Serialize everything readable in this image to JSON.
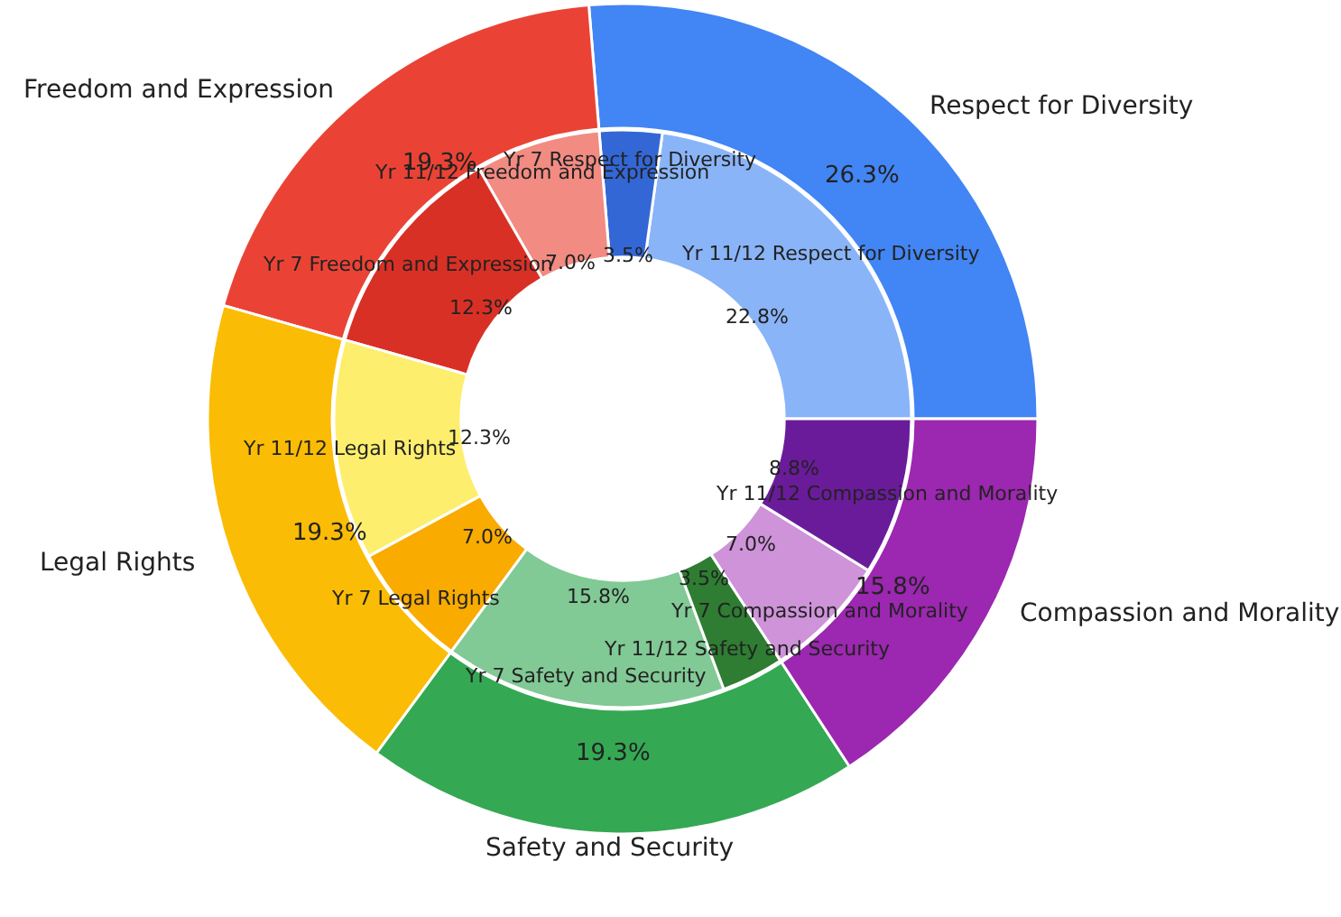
{
  "chart_data": [
    {
      "type": "donut",
      "categories": [
        "Respect for Diversity",
        "Freedom and Expression",
        "Legal Rights",
        "Safety and Security",
        "Compassion and Morality"
      ],
      "values": [
        26.3,
        19.3,
        19.3,
        19.3,
        15.8
      ],
      "value_labels": [
        "26.3%",
        "19.3%",
        "19.3%",
        "19.3%",
        "15.8%"
      ],
      "colors": [
        "#4285f4",
        "#ea4335",
        "#fbbc05",
        "#34a853",
        "#9c27b0"
      ]
    },
    {
      "type": "donut",
      "categories": [
        "Yr 11/12 Respect for Diversity",
        "Yr 7 Respect for Diversity",
        "Yr 11/12 Freedom and Expression",
        "Yr 7 Freedom and Expression",
        "Yr 11/12 Legal Rights",
        "Yr 7 Legal Rights",
        "Yr 7 Safety and Security",
        "Yr 11/12 Safety and Security",
        "Yr 7 Compassion and Morality",
        "Yr 11/12 Compassion and Morality"
      ],
      "values": [
        22.8,
        3.5,
        7.0,
        12.3,
        12.3,
        7.0,
        15.8,
        3.5,
        7.0,
        8.8
      ],
      "value_labels": [
        "22.8%",
        "3.5%",
        "7.0%",
        "12.3%",
        "12.3%",
        "7.0%",
        "15.8%",
        "3.5%",
        "7.0%",
        "8.8%"
      ],
      "colors": [
        "#8ab4f8",
        "#3367d6",
        "#f28b82",
        "#d93025",
        "#fdee6e",
        "#f9ab00",
        "#81c995",
        "#2e7d32",
        "#ce93d8",
        "#6a1b9a"
      ]
    }
  ]
}
